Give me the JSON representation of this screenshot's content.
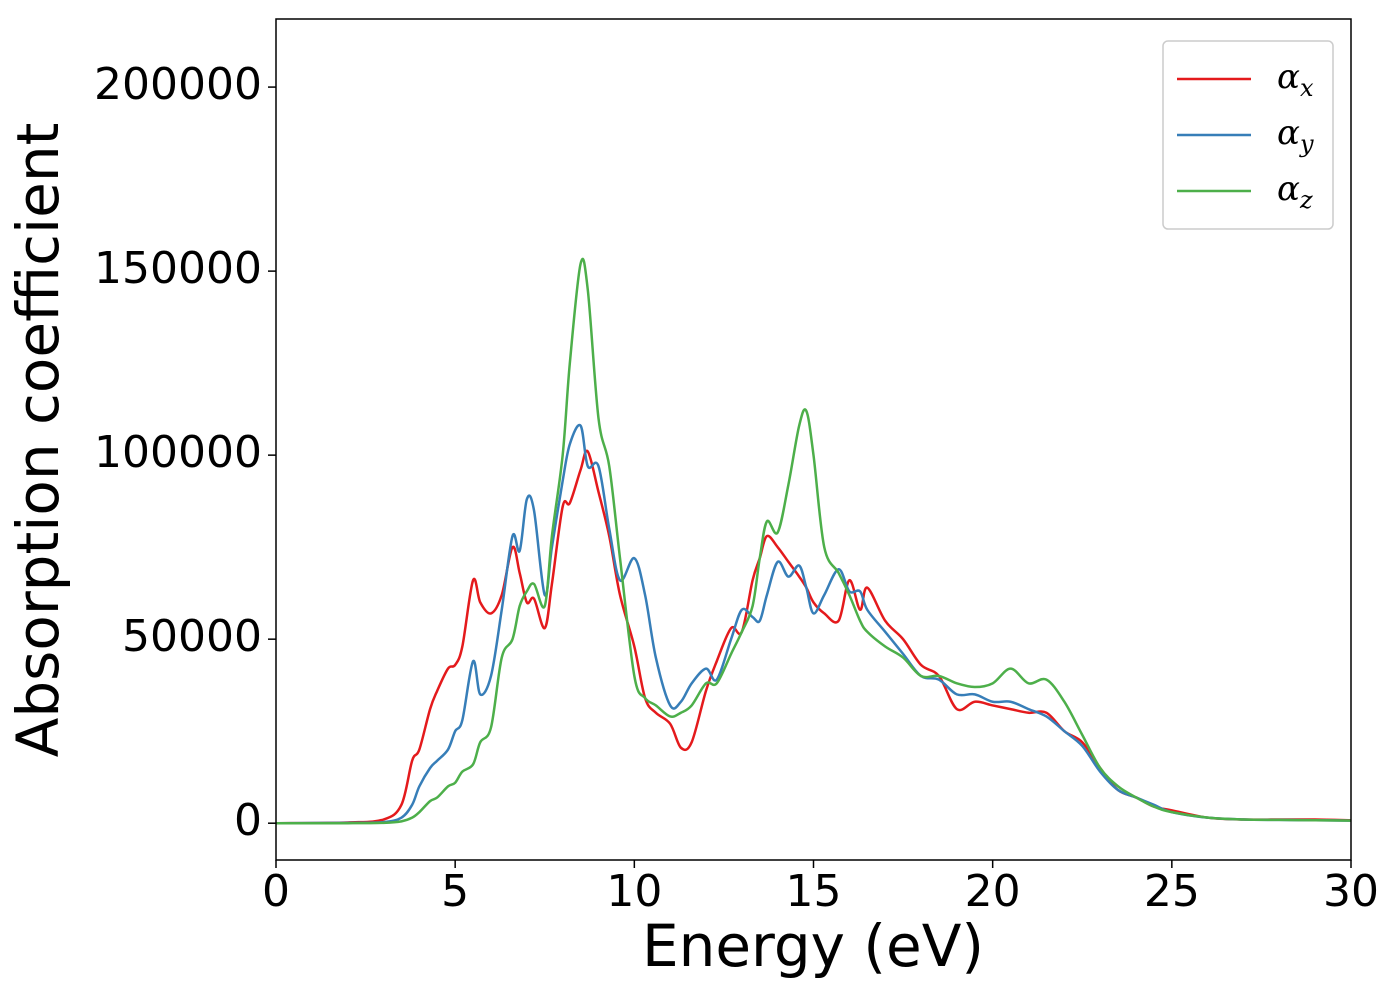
{
  "chart_data": {
    "type": "line",
    "xlabel": "Energy (eV)",
    "ylabel": "Absorption coefficient",
    "x": [
      0,
      2,
      3,
      3.5,
      3.8,
      4,
      4.3,
      4.5,
      4.8,
      5,
      5.2,
      5.5,
      5.7,
      6,
      6.3,
      6.6,
      6.8,
      7,
      7.2,
      7.5,
      7.7,
      8,
      8.2,
      8.5,
      8.7,
      9,
      9.3,
      9.6,
      10,
      10.3,
      10.6,
      11,
      11.3,
      11.6,
      12,
      12.3,
      12.7,
      13,
      13.3,
      13.5,
      13.7,
      14,
      14.3,
      14.6,
      14.8,
      15,
      15.3,
      15.7,
      16,
      16.3,
      16.5,
      17,
      17.5,
      18,
      18.5,
      19,
      19.5,
      20,
      20.5,
      21,
      21.5,
      22,
      22.5,
      23,
      23.5,
      24,
      24.5,
      25,
      26,
      27,
      28,
      29,
      30
    ],
    "series": [
      {
        "name": "αx",
        "color": "#e41a1c",
        "values": [
          0,
          200,
          1000,
          5000,
          17000,
          20000,
          31000,
          36000,
          42000,
          43000,
          48000,
          66000,
          60000,
          57000,
          62000,
          75000,
          68000,
          60000,
          61000,
          53000,
          65000,
          86000,
          87000,
          96000,
          101000,
          90000,
          78000,
          62000,
          48000,
          34000,
          30000,
          27000,
          20500,
          22000,
          36000,
          44000,
          53000,
          52000,
          66000,
          72000,
          78000,
          75000,
          71000,
          67000,
          64000,
          60000,
          57000,
          55000,
          66000,
          58000,
          64000,
          55000,
          50000,
          43000,
          40000,
          31000,
          33000,
          32000,
          31000,
          30000,
          30000,
          25000,
          22000,
          15000,
          9000,
          7000,
          4500,
          3500,
          1500,
          1000,
          1000,
          1000,
          800
        ]
      },
      {
        "name": "αy",
        "color": "#377eb8",
        "values": [
          0,
          100,
          300,
          1500,
          5000,
          10000,
          15000,
          17000,
          20000,
          25000,
          28000,
          44000,
          35000,
          40000,
          58000,
          78000,
          74000,
          88000,
          85000,
          62000,
          75000,
          93000,
          103000,
          108000,
          97000,
          97000,
          80000,
          66000,
          72000,
          62000,
          45000,
          32000,
          33000,
          38000,
          42000,
          39000,
          50000,
          58000,
          56000,
          55000,
          62000,
          71000,
          67000,
          70000,
          64000,
          57000,
          62000,
          69000,
          63000,
          63000,
          58000,
          52000,
          46000,
          40000,
          39000,
          35000,
          35000,
          33000,
          33000,
          31000,
          29000,
          25000,
          21000,
          14000,
          9000,
          7000,
          5000,
          3000,
          1500,
          1000,
          900,
          800,
          700
        ]
      },
      {
        "name": "αz",
        "color": "#4daf4a",
        "values": [
          0,
          0,
          100,
          500,
          1500,
          3000,
          6000,
          7000,
          10000,
          11000,
          14000,
          16000,
          22000,
          26000,
          45000,
          50000,
          59000,
          63000,
          65000,
          59000,
          78000,
          100000,
          125000,
          152000,
          145000,
          110000,
          97000,
          72000,
          40000,
          34000,
          32000,
          29000,
          30000,
          32000,
          38000,
          38000,
          46000,
          52000,
          59000,
          72000,
          82000,
          79000,
          92000,
          108000,
          112000,
          100000,
          75000,
          68000,
          62000,
          55000,
          52000,
          48000,
          45000,
          40000,
          40000,
          38000,
          37000,
          38000,
          42000,
          38000,
          39000,
          33000,
          24000,
          15000,
          10000,
          7000,
          4500,
          3000,
          1500,
          1000,
          900,
          800,
          700
        ]
      }
    ],
    "xlim": [
      0,
      30
    ],
    "xticks": [
      0,
      5,
      10,
      15,
      20,
      25,
      30
    ],
    "ylim": [
      -10000,
      218500
    ],
    "yticks": [
      0,
      50000,
      100000,
      150000,
      200000
    ],
    "grid": false,
    "legend": "upper right"
  }
}
